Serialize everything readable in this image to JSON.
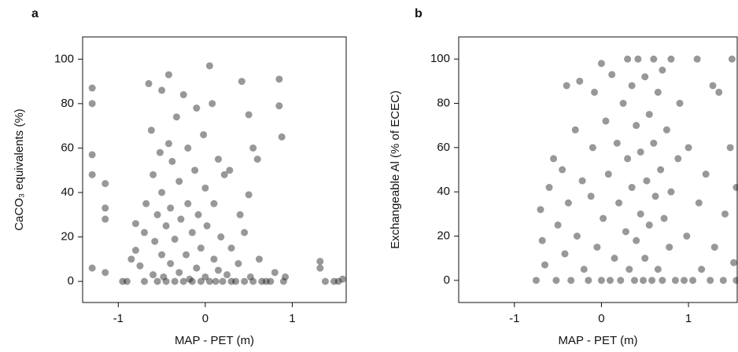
{
  "chart_data": [
    {
      "type": "scatter",
      "panel_label": "a",
      "xlabel": "MAP - PET (m)",
      "ylabel": "CaCO₃ equivalents (%)",
      "color": "#1a1a1a",
      "xlim": [
        -1.41,
        1.62
      ],
      "ylim": [
        -9.5,
        110
      ],
      "xticks": [
        -1,
        0,
        1
      ],
      "yticks": [
        0,
        20,
        40,
        60,
        80,
        100
      ],
      "grid": false,
      "x": [
        -1.3,
        -1.3,
        -1.3,
        -1.3,
        -1.3,
        -1.15,
        -1.15,
        -1.15,
        -1.15,
        -0.95,
        -0.9,
        -0.85,
        -0.8,
        -0.8,
        -0.75,
        -0.7,
        -0.7,
        -0.68,
        -0.65,
        -0.62,
        -0.6,
        -0.6,
        -0.58,
        -0.55,
        -0.55,
        -0.52,
        -0.5,
        -0.5,
        -0.5,
        -0.48,
        -0.45,
        -0.45,
        -0.42,
        -0.42,
        -0.4,
        -0.4,
        -0.38,
        -0.35,
        -0.35,
        -0.33,
        -0.3,
        -0.3,
        -0.28,
        -0.25,
        -0.25,
        -0.22,
        -0.2,
        -0.2,
        -0.18,
        -0.15,
        -0.15,
        -0.12,
        -0.1,
        -0.1,
        -0.08,
        -0.05,
        -0.05,
        -0.02,
        0,
        0,
        0.02,
        0.05,
        0.05,
        0.08,
        0.1,
        0.1,
        0.12,
        0.15,
        0.15,
        0.18,
        0.2,
        0.22,
        0.25,
        0.28,
        0.3,
        0.3,
        0.35,
        0.38,
        0.4,
        0.42,
        0.45,
        0.45,
        0.5,
        0.5,
        0.52,
        0.55,
        0.55,
        0.6,
        0.62,
        0.65,
        0.7,
        0.75,
        0.8,
        0.85,
        0.85,
        0.88,
        0.9,
        0.92,
        1.32,
        1.32,
        1.38,
        1.48,
        1.53,
        1.58
      ],
      "values": [
        87,
        80,
        57,
        48,
        6,
        44,
        33,
        28,
        4,
        0,
        0,
        10,
        14,
        26,
        7,
        0,
        22,
        35,
        89,
        68,
        48,
        3,
        18,
        30,
        0,
        58,
        86,
        12,
        40,
        2,
        25,
        0,
        93,
        62,
        8,
        33,
        54,
        0,
        19,
        74,
        4,
        45,
        28,
        0,
        84,
        12,
        60,
        35,
        1,
        22,
        0,
        50,
        78,
        6,
        30,
        0,
        15,
        66,
        42,
        2,
        25,
        0,
        97,
        80,
        10,
        35,
        0,
        55,
        5,
        20,
        0,
        48,
        3,
        50,
        15,
        0,
        0,
        8,
        30,
        90,
        0,
        22,
        75,
        39,
        2,
        60,
        0,
        55,
        10,
        0,
        0,
        0,
        4,
        91,
        79,
        65,
        0,
        2,
        9,
        6,
        0,
        0,
        0,
        1
      ]
    },
    {
      "type": "scatter",
      "panel_label": "b",
      "xlabel": "MAP - PET (m)",
      "ylabel": "Exchangeable Al (% of ECEC)",
      "color": "#1a1a1a",
      "xlim": [
        -1.64,
        1.56
      ],
      "ylim": [
        -10,
        110
      ],
      "xticks": [
        -1,
        0,
        1
      ],
      "yticks": [
        0,
        20,
        40,
        60,
        80,
        100
      ],
      "grid": false,
      "x": [
        -0.75,
        -0.7,
        -0.68,
        -0.65,
        -0.6,
        -0.55,
        -0.52,
        -0.5,
        -0.45,
        -0.42,
        -0.4,
        -0.38,
        -0.35,
        -0.3,
        -0.28,
        -0.25,
        -0.22,
        -0.2,
        -0.15,
        -0.12,
        -0.1,
        -0.08,
        -0.05,
        0,
        0,
        0.02,
        0.05,
        0.08,
        0.1,
        0.12,
        0.15,
        0.18,
        0.2,
        0.22,
        0.25,
        0.28,
        0.3,
        0.3,
        0.32,
        0.35,
        0.35,
        0.38,
        0.4,
        0.4,
        0.42,
        0.45,
        0.45,
        0.48,
        0.5,
        0.5,
        0.52,
        0.55,
        0.55,
        0.58,
        0.6,
        0.6,
        0.62,
        0.65,
        0.65,
        0.68,
        0.7,
        0.7,
        0.72,
        0.75,
        0.78,
        0.8,
        0.8,
        0.85,
        0.88,
        0.9,
        0.95,
        0.98,
        1.0,
        1.05,
        1.1,
        1.12,
        1.15,
        1.2,
        1.25,
        1.28,
        1.3,
        1.35,
        1.4,
        1.42,
        1.48,
        1.5,
        1.52,
        1.55,
        1.55
      ],
      "values": [
        0,
        32,
        18,
        7,
        42,
        55,
        0,
        25,
        50,
        12,
        88,
        35,
        0,
        68,
        20,
        90,
        45,
        5,
        0,
        38,
        60,
        85,
        15,
        98,
        0,
        28,
        72,
        48,
        0,
        93,
        10,
        62,
        35,
        0,
        80,
        22,
        100,
        55,
        5,
        88,
        42,
        0,
        70,
        18,
        100,
        30,
        58,
        0,
        92,
        10,
        45,
        75,
        25,
        0,
        100,
        62,
        38,
        85,
        5,
        50,
        0,
        95,
        28,
        68,
        15,
        100,
        40,
        0,
        55,
        80,
        0,
        20,
        60,
        0,
        100,
        35,
        5,
        48,
        0,
        88,
        15,
        85,
        0,
        30,
        60,
        100,
        8,
        42,
        0
      ]
    }
  ]
}
